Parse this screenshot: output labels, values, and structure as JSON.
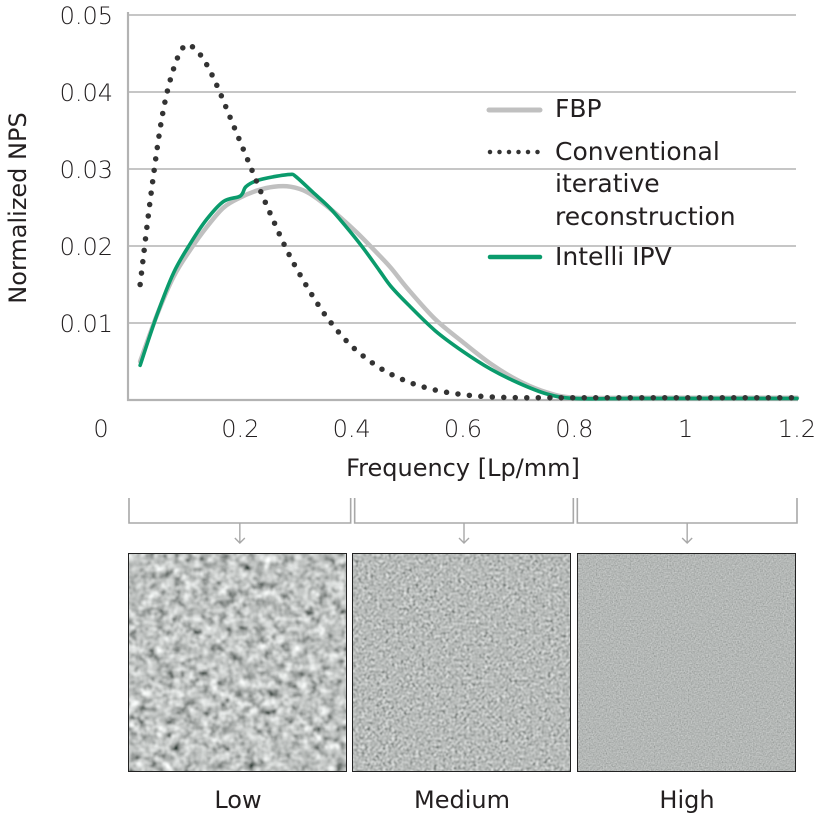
{
  "chart_data": {
    "type": "line",
    "title": "",
    "xlabel": "Frequency [Lp/mm]",
    "ylabel": "Normalized NPS",
    "xlim": [
      0,
      1.2
    ],
    "ylim": [
      0,
      0.05
    ],
    "x_ticks": [
      "0",
      "0.2",
      "0.4",
      "0.6",
      "0.8",
      "1",
      "1.2"
    ],
    "y_ticks": [
      "0.01",
      "0.02",
      "0.03",
      "0.04",
      "0.05"
    ],
    "grid": "horizontal",
    "legend_position": "upper right, inside",
    "series": [
      {
        "name": "FBP",
        "style": "solid",
        "color": "#c0c0c0",
        "x": [
          0.02,
          0.05,
          0.08,
          0.11,
          0.14,
          0.17,
          0.2,
          0.23,
          0.26,
          0.29,
          0.32,
          0.35,
          0.38,
          0.41,
          0.44,
          0.47,
          0.5,
          0.55,
          0.6,
          0.65,
          0.7,
          0.75,
          0.8,
          0.9,
          1.0,
          1.1,
          1.2
        ],
        "values": [
          0.005,
          0.011,
          0.016,
          0.0195,
          0.0225,
          0.025,
          0.0263,
          0.0272,
          0.0277,
          0.0277,
          0.027,
          0.0255,
          0.0237,
          0.0217,
          0.0195,
          0.0172,
          0.0145,
          0.0105,
          0.0075,
          0.0047,
          0.0025,
          0.001,
          0.0003,
          0.0003,
          0.0003,
          0.0003,
          0.0003
        ]
      },
      {
        "name": "Conventional iterative reconstruction",
        "style": "dotted",
        "color": "#333333",
        "x": [
          0.02,
          0.04,
          0.06,
          0.08,
          0.1,
          0.12,
          0.14,
          0.16,
          0.18,
          0.2,
          0.22,
          0.24,
          0.26,
          0.28,
          0.3,
          0.33,
          0.36,
          0.4,
          0.45,
          0.5,
          0.55,
          0.6,
          0.65,
          0.7,
          0.75,
          0.8,
          0.9,
          1.0,
          1.1,
          1.2
        ],
        "values": [
          0.015,
          0.027,
          0.037,
          0.043,
          0.046,
          0.0455,
          0.0435,
          0.0405,
          0.037,
          0.0335,
          0.03,
          0.0265,
          0.0232,
          0.02,
          0.0172,
          0.0135,
          0.0103,
          0.007,
          0.0042,
          0.0024,
          0.0013,
          0.0007,
          0.0004,
          0.0003,
          0.0003,
          0.0003,
          0.0003,
          0.0003,
          0.0003,
          0.0003
        ]
      },
      {
        "name": "Intelli IPV",
        "style": "solid",
        "color": "#0a9b6c",
        "x": [
          0.02,
          0.05,
          0.08,
          0.11,
          0.14,
          0.17,
          0.2,
          0.21,
          0.23,
          0.26,
          0.29,
          0.3,
          0.33,
          0.36,
          0.39,
          0.42,
          0.45,
          0.47,
          0.5,
          0.55,
          0.6,
          0.65,
          0.7,
          0.75,
          0.8,
          0.9,
          1.0,
          1.1,
          1.2
        ],
        "values": [
          0.0045,
          0.011,
          0.0165,
          0.0203,
          0.0235,
          0.0258,
          0.0265,
          0.0277,
          0.0285,
          0.029,
          0.0293,
          0.029,
          0.027,
          0.025,
          0.0225,
          0.0198,
          0.0168,
          0.0148,
          0.0125,
          0.009,
          0.0063,
          0.004,
          0.0022,
          0.0008,
          0.0002,
          0.0002,
          0.0002,
          0.0002,
          0.0002
        ]
      }
    ]
  },
  "legend": {
    "items": [
      {
        "label_lines": [
          "FBP"
        ],
        "color": "#c0c0c0",
        "style": "solid"
      },
      {
        "label_lines": [
          "Conventional",
          "iterative",
          "reconstruction"
        ],
        "color": "#333333",
        "style": "dotted"
      },
      {
        "label_lines": [
          "Intelli IPV"
        ],
        "color": "#0a9b6c",
        "style": "solid"
      }
    ]
  },
  "bands": [
    {
      "label": "Low",
      "range": [
        0,
        0.4
      ]
    },
    {
      "label": "Medium",
      "range": [
        0.4,
        0.8
      ]
    },
    {
      "label": "High",
      "range": [
        0.8,
        1.2
      ]
    }
  ]
}
